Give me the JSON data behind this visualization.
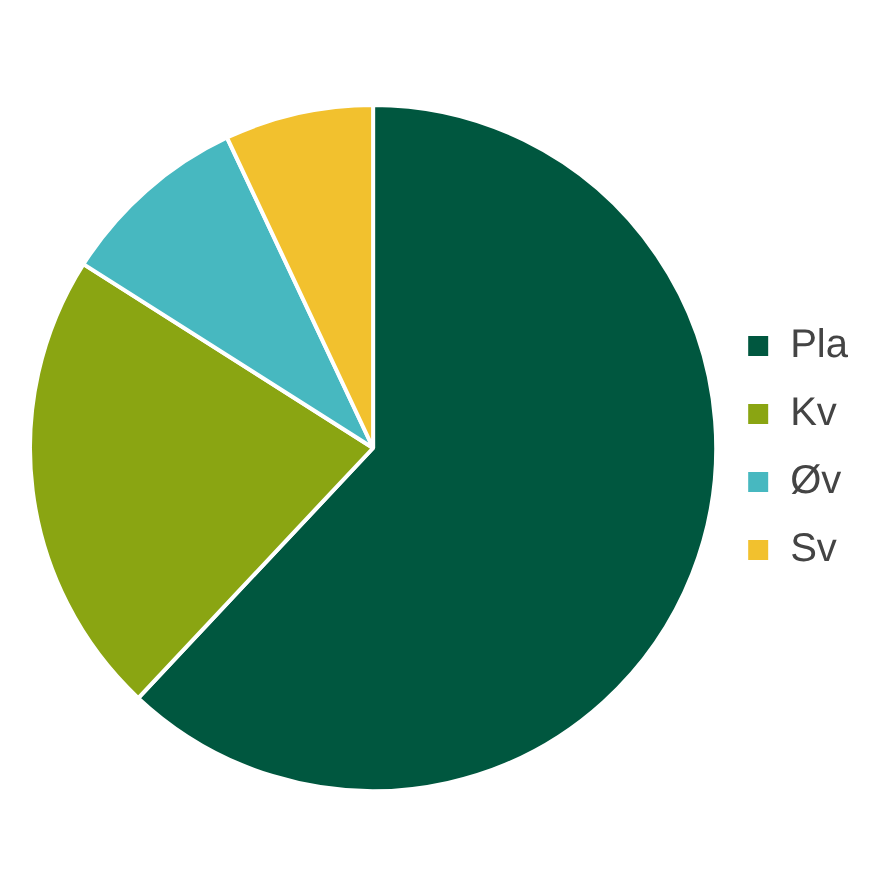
{
  "chart_data": {
    "type": "pie",
    "categories": [
      "Pla",
      "Kv",
      "Øv",
      "Sv"
    ],
    "values": [
      62,
      22,
      9,
      7
    ],
    "colors": [
      "#00573f",
      "#8aa512",
      "#47b8c0",
      "#f2c12e"
    ],
    "legend": "right"
  }
}
